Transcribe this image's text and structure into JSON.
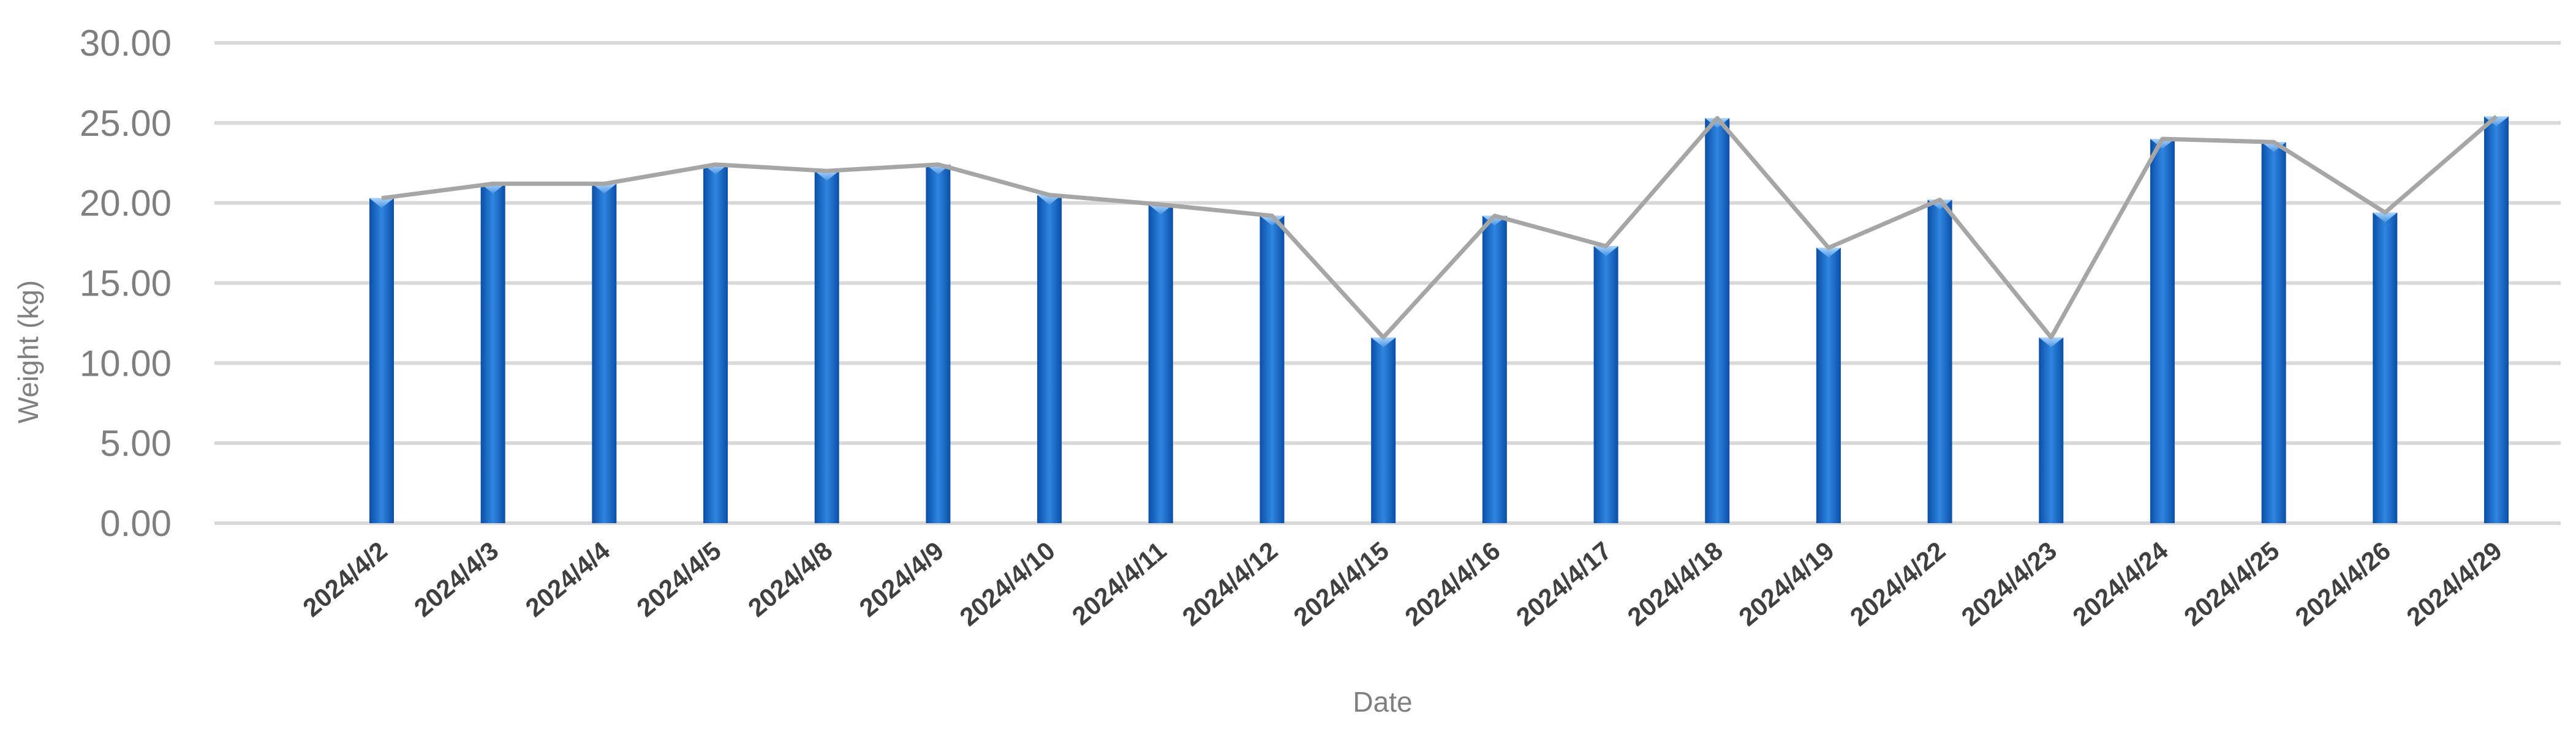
{
  "chart_data": {
    "type": "bar",
    "title": "",
    "xlabel": "Date",
    "ylabel": "Weight (kg)",
    "ylim": [
      0,
      30
    ],
    "y_ticks": [
      "0.00",
      "5.00",
      "10.00",
      "15.00",
      "20.00",
      "25.00",
      "30.00"
    ],
    "grid": true,
    "categories": [
      "2024/4/2",
      "2024/4/3",
      "2024/4/4",
      "2024/4/5",
      "2024/4/8",
      "2024/4/9",
      "2024/4/10",
      "2024/4/11",
      "2024/4/12",
      "2024/4/15",
      "2024/4/16",
      "2024/4/17",
      "2024/4/18",
      "2024/4/19",
      "2024/4/22",
      "2024/4/23",
      "2024/4/24",
      "2024/4/25",
      "2024/4/26",
      "2024/4/29"
    ],
    "values": [
      20.3,
      21.2,
      21.2,
      22.4,
      22.0,
      22.4,
      20.5,
      19.9,
      19.2,
      11.6,
      19.2,
      17.3,
      25.3,
      17.2,
      20.2,
      11.6,
      24.0,
      23.8,
      19.4,
      25.4
    ],
    "overlay_line": true,
    "colors": {
      "bar": "#1464c8",
      "bar_light": "#5a9ee8",
      "line": "#a6a6a6",
      "grid": "#d9d9d9"
    }
  }
}
